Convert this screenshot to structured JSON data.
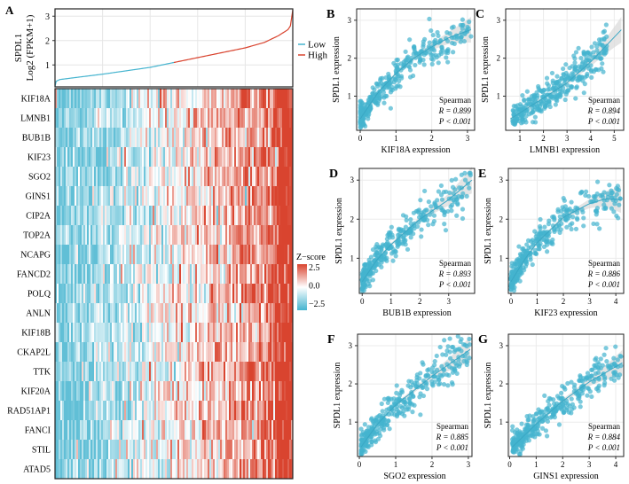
{
  "chart_data": [
    {
      "panel": "A",
      "type": "line",
      "title": "",
      "ylabel_top": "SPDL1",
      "ylabel_bottom": "Log2 (FPKM+1)",
      "ylim": [
        0.1,
        3.3
      ],
      "yticks": [
        1,
        2,
        3
      ],
      "legend": [
        {
          "name": "Low",
          "color": "#45b4cf"
        },
        {
          "name": "High",
          "color": "#d9442f"
        }
      ],
      "legend_position": "right",
      "sorted_quantiles": [
        [
          0,
          0.12
        ],
        [
          0.005,
          0.33
        ],
        [
          0.02,
          0.4
        ],
        [
          0.1,
          0.5
        ],
        [
          0.2,
          0.62
        ],
        [
          0.3,
          0.76
        ],
        [
          0.4,
          0.9
        ],
        [
          0.5,
          1.1
        ],
        [
          0.6,
          1.3
        ],
        [
          0.7,
          1.5
        ],
        [
          0.8,
          1.7
        ],
        [
          0.88,
          1.92
        ],
        [
          0.94,
          2.2
        ],
        [
          0.98,
          2.45
        ],
        [
          0.99,
          2.6
        ],
        [
          1,
          3.25
        ]
      ],
      "split_quantile": 0.5
    },
    {
      "panel": "A",
      "type": "heatmap",
      "genes": [
        "KIF18A",
        "LMNB1",
        "BUB1B",
        "KIF23",
        "SGO2",
        "GINS1",
        "CIP2A",
        "TOP2A",
        "NCAPG",
        "FANCD2",
        "POLQ",
        "ANLN",
        "KIF18B",
        "CKAP2L",
        "TTK",
        "KIF20A",
        "RAD51AP1",
        "FANCI",
        "STIL",
        "ATAD5"
      ],
      "colorbar": {
        "title": "Z−score",
        "ticks": [
          "2.5",
          "0.0",
          "−2.5"
        ],
        "low": "#45b4cf",
        "mid": "#ffffff",
        "high": "#d9442f"
      }
    },
    {
      "panel": "B",
      "type": "scatter",
      "xlabel": "KIF18A expression",
      "ylabel": "SPDL1 expression",
      "xlim": [
        -0.1,
        3.2
      ],
      "xticks": [
        0,
        1,
        2,
        3
      ],
      "ylim": [
        0.1,
        3.3
      ],
      "yticks": [
        1,
        2,
        3
      ],
      "method": "Spearman",
      "R": "R = 0.899",
      "P": "P < 0.001",
      "fit": [
        [
          0,
          0.4
        ],
        [
          0.5,
          1.1
        ],
        [
          1,
          1.6
        ],
        [
          1.5,
          2.0
        ],
        [
          2,
          2.3
        ],
        [
          2.5,
          2.55
        ],
        [
          3.1,
          2.75
        ]
      ],
      "xmax": 3.1
    },
    {
      "panel": "C",
      "type": "scatter",
      "xlabel": "LMNB1 expression",
      "ylabel": "SPDL1 expression",
      "xlim": [
        0.4,
        5.4
      ],
      "xticks": [
        1,
        2,
        3,
        4,
        5
      ],
      "ylim": [
        0.1,
        3.3
      ],
      "yticks": [
        1,
        2,
        3
      ],
      "method": "Spearman",
      "R": "R = 0.894",
      "P": "P < 0.001",
      "fit": [
        [
          0.6,
          0.4
        ],
        [
          2,
          0.95
        ],
        [
          3,
          1.35
        ],
        [
          4,
          1.9
        ],
        [
          5.3,
          2.75
        ]
      ],
      "xmax": 5.3
    },
    {
      "panel": "D",
      "type": "scatter",
      "xlabel": "BUB1B expression",
      "ylabel": "SPDL1 expression",
      "xlim": [
        -0.1,
        3.9
      ],
      "xticks": [
        0,
        1,
        2,
        3
      ],
      "ylim": [
        0.1,
        3.3
      ],
      "yticks": [
        1,
        2,
        3
      ],
      "method": "Spearman",
      "R": "R = 0.893",
      "P": "P < 0.001",
      "fit": [
        [
          0,
          0.4
        ],
        [
          0.5,
          0.95
        ],
        [
          1,
          1.35
        ],
        [
          2,
          2.0
        ],
        [
          3,
          2.5
        ],
        [
          3.8,
          3.0
        ]
      ],
      "xmax": 3.8
    },
    {
      "panel": "E",
      "type": "scatter",
      "xlabel": "KIF23 expression",
      "ylabel": "SPDL1 expression",
      "xlim": [
        -0.1,
        4.3
      ],
      "xticks": [
        0,
        1,
        2,
        3,
        4
      ],
      "ylim": [
        0.1,
        3.3
      ],
      "yticks": [
        1,
        2,
        3
      ],
      "method": "Spearman",
      "R": "R = 0.886",
      "P": "P < 0.001",
      "fit": [
        [
          0,
          0.4
        ],
        [
          0.5,
          0.95
        ],
        [
          1,
          1.4
        ],
        [
          2,
          2.05
        ],
        [
          3,
          2.4
        ],
        [
          3.6,
          2.52
        ],
        [
          4.2,
          2.5
        ]
      ],
      "xmax": 4.2
    },
    {
      "panel": "F",
      "type": "scatter",
      "xlabel": "SGO2 expression",
      "ylabel": "SPDL1 expression",
      "xlim": [
        -0.05,
        3.1
      ],
      "xticks": [
        0,
        1,
        2,
        3
      ],
      "ylim": [
        0.1,
        3.3
      ],
      "yticks": [
        1,
        2,
        3
      ],
      "method": "Spearman",
      "R": "R = 0.885",
      "P": "P < 0.001",
      "fit": [
        [
          0.05,
          0.35
        ],
        [
          0.5,
          0.95
        ],
        [
          1,
          1.45
        ],
        [
          2,
          2.2
        ],
        [
          3.05,
          2.9
        ]
      ],
      "xmax": 3.05
    },
    {
      "panel": "G",
      "type": "scatter",
      "xlabel": "GINS1 expression",
      "ylabel": "SPDL1 expression",
      "xlim": [
        -0.05,
        4.3
      ],
      "xticks": [
        0,
        1,
        2,
        3,
        4
      ],
      "ylim": [
        0.1,
        3.3
      ],
      "yticks": [
        1,
        2,
        3
      ],
      "method": "Spearman",
      "R": "R = 0.884",
      "P": "P < 0.001",
      "fit": [
        [
          0.1,
          0.35
        ],
        [
          1,
          0.95
        ],
        [
          2,
          1.55
        ],
        [
          3,
          2.05
        ],
        [
          4.25,
          2.55
        ]
      ],
      "xmax": 4.25
    }
  ],
  "colors": {
    "point": "#45b4cf",
    "fit": "#3aa7c4",
    "band": "#d9d9d9"
  }
}
